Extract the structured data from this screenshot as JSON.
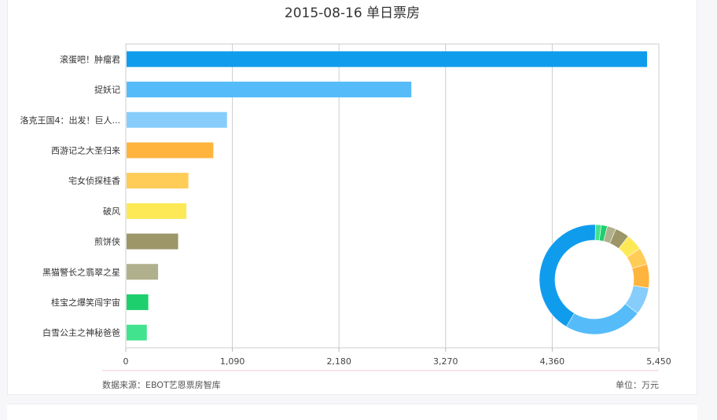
{
  "chart_data": {
    "type": "bar",
    "orientation": "horizontal",
    "title": "2015-08-16 单日票房",
    "categories": [
      "滚蛋吧！肿瘤君",
      "捉妖记",
      "洛克王国4：出发！巨人...",
      "西游记之大圣归来",
      "宅女侦探桂香",
      "破风",
      "煎饼侠",
      "黑猫警长之翡翠之星",
      "桂宝之爆笑闯宇宙",
      "白雪公主之神秘爸爸"
    ],
    "values": [
      5330,
      2920,
      1035,
      895,
      640,
      620,
      535,
      330,
      230,
      215
    ],
    "colors": [
      "#109ced",
      "#55bcf9",
      "#86cdfb",
      "#ffb43d",
      "#ffcc58",
      "#fde956",
      "#9c9668",
      "#b0b08c",
      "#1ecf6e",
      "#41e38e"
    ],
    "xticks": [
      "0",
      "1,090",
      "2,180",
      "3,270",
      "4,360",
      "5,450"
    ],
    "xlim": [
      0,
      5450
    ],
    "grid": true,
    "source": "数据来源：EBOT艺恩票房智库",
    "unit": "单位：万元",
    "inset": {
      "type": "donut",
      "placement": "bottom-right"
    }
  }
}
